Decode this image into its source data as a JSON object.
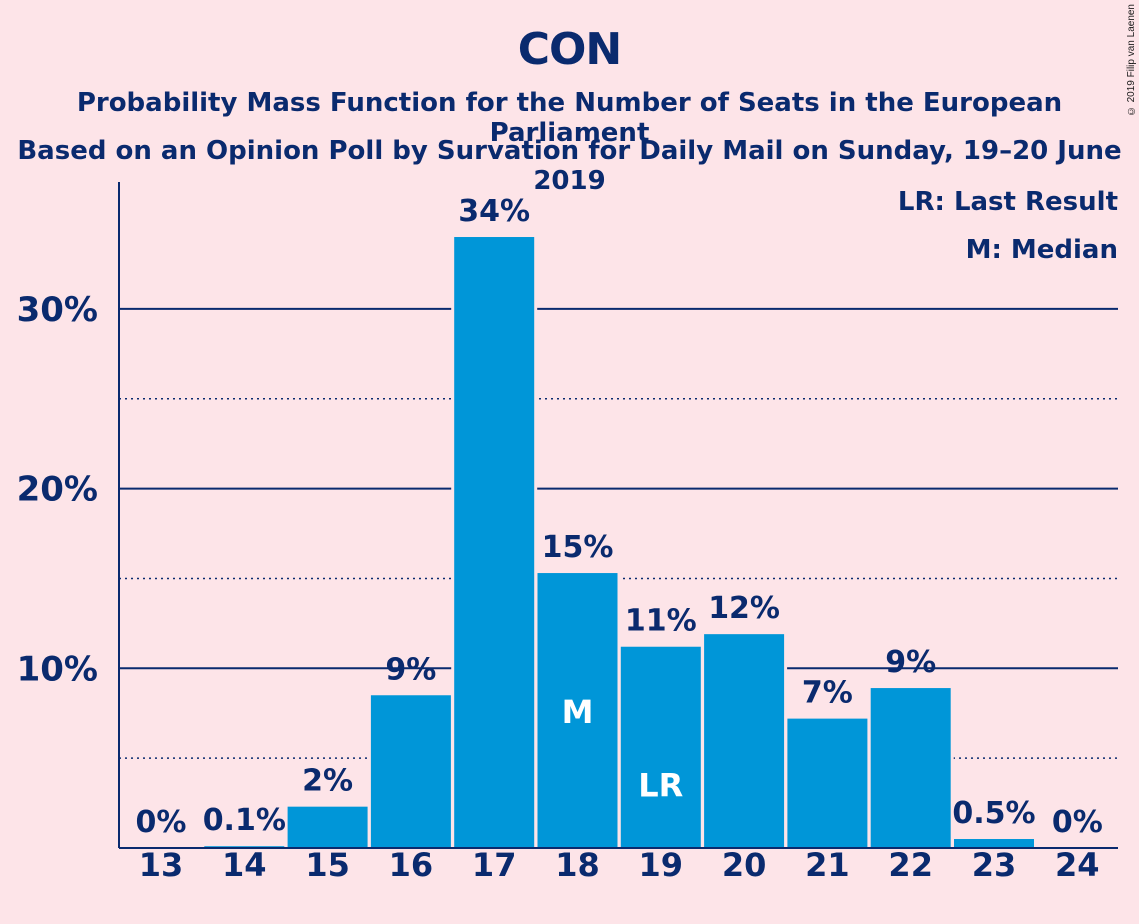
{
  "header": {
    "title": "CON",
    "subtitle_line1": "Probability Mass Function for the Number of Seats in the European Parliament",
    "subtitle_line2": "Based on an Opinion Poll by Survation for Daily Mail on Sunday, 19–20 June 2019",
    "copyright": "© 2019 Filip van Laenen"
  },
  "legend": {
    "last_result": "LR: Last Result",
    "median": "M: Median"
  },
  "colors": {
    "background": "#fde4e8",
    "bar": "#0096d8",
    "text": "#0a2a6e",
    "marker_text": "#ffffff"
  },
  "chart_data": {
    "type": "bar",
    "categories": [
      "13",
      "14",
      "15",
      "16",
      "17",
      "18",
      "19",
      "20",
      "21",
      "22",
      "23",
      "24"
    ],
    "values": [
      0,
      0.1,
      2.3,
      8.5,
      34,
      15.3,
      11.2,
      11.9,
      7.2,
      8.9,
      0.5,
      0
    ],
    "value_labels": [
      "0%",
      "0.1%",
      "2%",
      "9%",
      "34%",
      "15%",
      "11%",
      "12%",
      "7%",
      "9%",
      "0.5%",
      "0%"
    ],
    "markers": [
      {
        "category": "18",
        "label": "M"
      },
      {
        "category": "19",
        "label": "LR"
      }
    ],
    "ylim": [
      0,
      37
    ],
    "major_ticks": [
      10,
      20,
      30
    ],
    "major_tick_labels": [
      "10%",
      "20%",
      "30%"
    ],
    "minor_ticks": [
      5,
      15,
      25
    ],
    "grid": true,
    "legend_position": "top-right"
  }
}
